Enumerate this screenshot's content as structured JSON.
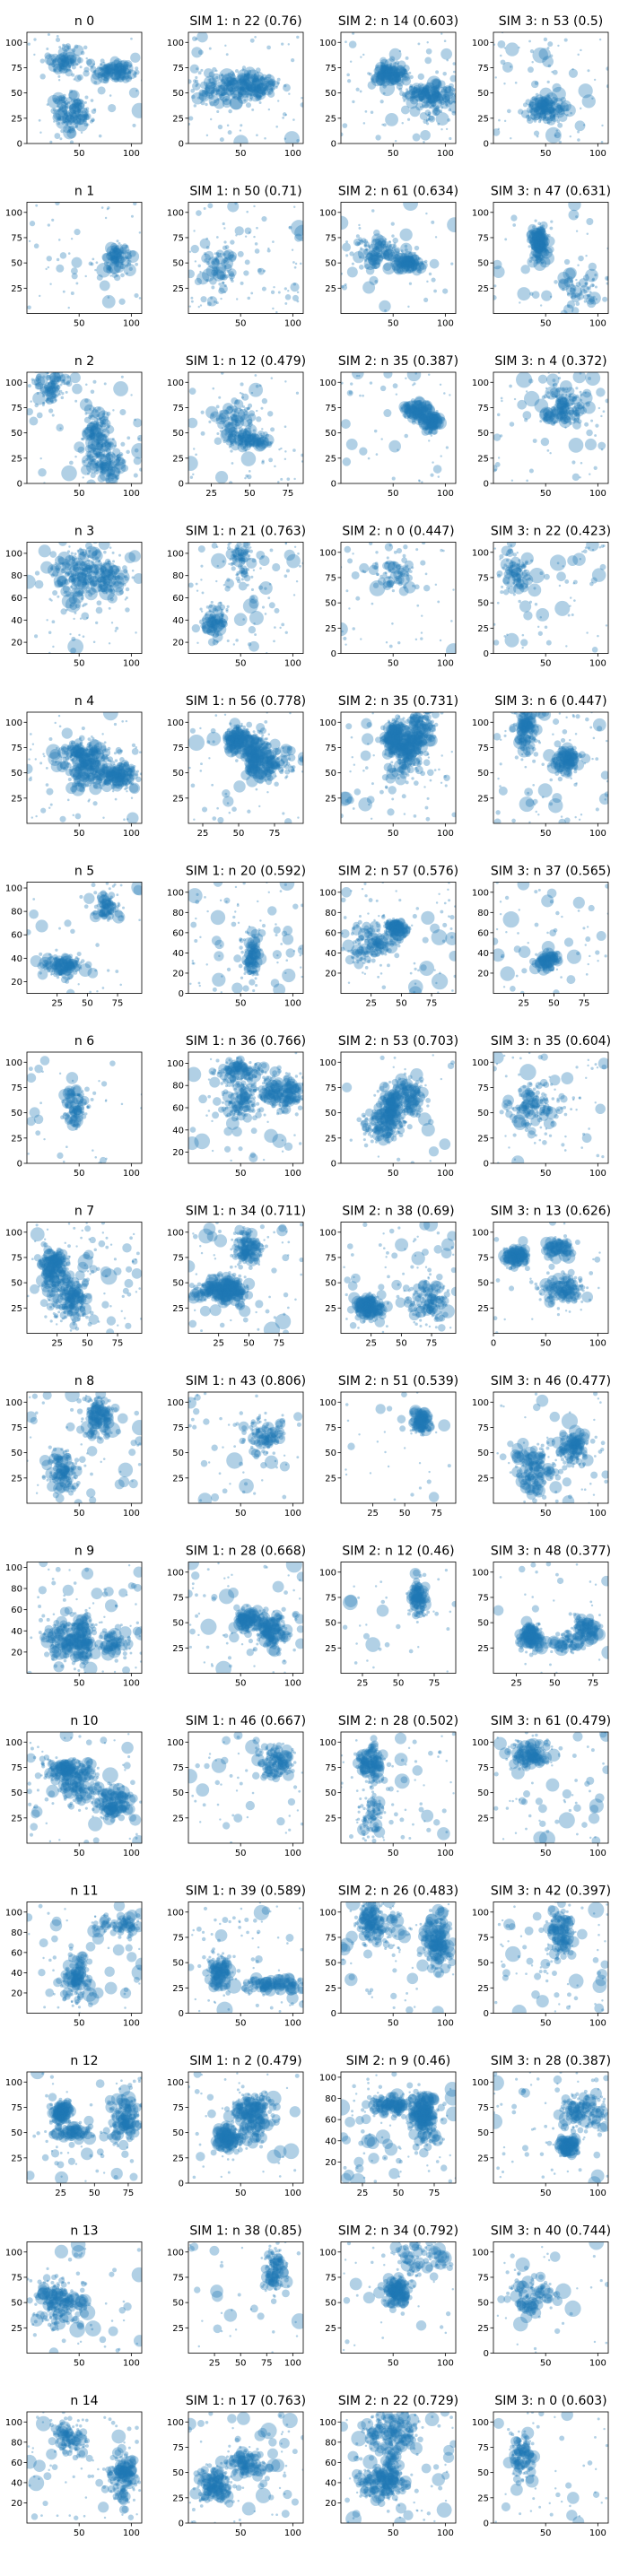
{
  "figure": {
    "colors": {
      "marker": "#1f77b4",
      "marker_alpha": 0.35,
      "axis": "#000000",
      "background": "#ffffff"
    },
    "rows": 15,
    "cols": 4
  },
  "chart_data": [
    {
      "title": "n 0",
      "type": "scatter",
      "xlim": [
        0,
        110
      ],
      "ylim": [
        0,
        110
      ],
      "xticks": [
        50,
        100
      ],
      "yticks": [
        0,
        25,
        50,
        75,
        100
      ]
    },
    {
      "title": "SIM 1: n 22 (0.76)",
      "type": "scatter",
      "xlim": [
        0,
        110
      ],
      "ylim": [
        0,
        110
      ],
      "xticks": [
        50,
        100
      ],
      "yticks": [
        0,
        25,
        50,
        75,
        100
      ]
    },
    {
      "title": "SIM 2: n 14 (0.603)",
      "type": "scatter",
      "xlim": [
        0,
        110
      ],
      "ylim": [
        0,
        110
      ],
      "xticks": [
        50,
        100
      ],
      "yticks": [
        0,
        25,
        50,
        75,
        100
      ]
    },
    {
      "title": "SIM 3: n 53 (0.5)",
      "type": "scatter",
      "xlim": [
        0,
        110
      ],
      "ylim": [
        0,
        110
      ],
      "xticks": [
        50,
        100
      ],
      "yticks": [
        0,
        25,
        50,
        75,
        100
      ]
    },
    {
      "title": "n 1",
      "type": "scatter",
      "xlim": [
        0,
        110
      ],
      "ylim": [
        0,
        110
      ],
      "xticks": [
        50,
        100
      ],
      "yticks": [
        25,
        50,
        75,
        100
      ]
    },
    {
      "title": "SIM 1: n 50 (0.71)",
      "type": "scatter",
      "xlim": [
        0,
        110
      ],
      "ylim": [
        0,
        110
      ],
      "xticks": [
        50,
        100
      ],
      "yticks": [
        25,
        50,
        75,
        100
      ]
    },
    {
      "title": "SIM 2: n 61 (0.634)",
      "type": "scatter",
      "xlim": [
        0,
        110
      ],
      "ylim": [
        0,
        110
      ],
      "xticks": [
        50,
        100
      ],
      "yticks": [
        25,
        50,
        75,
        100
      ]
    },
    {
      "title": "SIM 3: n 47 (0.631)",
      "type": "scatter",
      "xlim": [
        0,
        110
      ],
      "ylim": [
        0,
        110
      ],
      "xticks": [
        50,
        100
      ],
      "yticks": [
        25,
        50,
        75,
        100
      ]
    },
    {
      "title": "n 2",
      "type": "scatter",
      "xlim": [
        0,
        110
      ],
      "ylim": [
        0,
        110
      ],
      "xticks": [
        50,
        100
      ],
      "yticks": [
        0,
        25,
        50,
        75,
        100
      ]
    },
    {
      "title": "SIM 1: n 12 (0.479)",
      "type": "scatter",
      "xlim": [
        10,
        85
      ],
      "ylim": [
        0,
        110
      ],
      "xticks": [
        25,
        50,
        75
      ],
      "yticks": [
        0,
        25,
        50,
        75,
        100
      ]
    },
    {
      "title": "SIM 2: n 35 (0.387)",
      "type": "scatter",
      "xlim": [
        0,
        110
      ],
      "ylim": [
        0,
        110
      ],
      "xticks": [
        50,
        100
      ],
      "yticks": [
        0,
        25,
        50,
        75,
        100
      ]
    },
    {
      "title": "SIM 3: n 4 (0.372)",
      "type": "scatter",
      "xlim": [
        0,
        110
      ],
      "ylim": [
        0,
        110
      ],
      "xticks": [
        50,
        100
      ],
      "yticks": [
        0,
        25,
        50,
        75,
        100
      ]
    },
    {
      "title": "n 3",
      "type": "scatter",
      "xlim": [
        0,
        110
      ],
      "ylim": [
        10,
        110
      ],
      "xticks": [
        50,
        100
      ],
      "yticks": [
        20,
        40,
        60,
        80,
        100
      ]
    },
    {
      "title": "SIM 1: n 21 (0.763)",
      "type": "scatter",
      "xlim": [
        0,
        110
      ],
      "ylim": [
        10,
        110
      ],
      "xticks": [
        50,
        100
      ],
      "yticks": [
        20,
        40,
        60,
        80,
        100
      ]
    },
    {
      "title": "SIM 2: n 0 (0.447)",
      "type": "scatter",
      "xlim": [
        0,
        110
      ],
      "ylim": [
        0,
        110
      ],
      "xticks": [
        50,
        100
      ],
      "yticks": [
        0,
        25,
        50,
        75,
        100
      ]
    },
    {
      "title": "SIM 3: n 22 (0.423)",
      "type": "scatter",
      "xlim": [
        0,
        110
      ],
      "ylim": [
        0,
        110
      ],
      "xticks": [
        50,
        100
      ],
      "yticks": [
        0,
        25,
        50,
        75,
        100
      ]
    },
    {
      "title": "n 4",
      "type": "scatter",
      "xlim": [
        0,
        110
      ],
      "ylim": [
        0,
        110
      ],
      "xticks": [
        50,
        100
      ],
      "yticks": [
        25,
        50,
        75,
        100
      ]
    },
    {
      "title": "SIM 1: n 56 (0.778)",
      "type": "scatter",
      "xlim": [
        15,
        95
      ],
      "ylim": [
        0,
        110
      ],
      "xticks": [
        25,
        50,
        75
      ],
      "yticks": [
        25,
        50,
        75,
        100
      ]
    },
    {
      "title": "SIM 2: n 35 (0.731)",
      "type": "scatter",
      "xlim": [
        0,
        110
      ],
      "ylim": [
        0,
        110
      ],
      "xticks": [
        50,
        100
      ],
      "yticks": [
        25,
        50,
        75,
        100
      ]
    },
    {
      "title": "SIM 3: n 6 (0.447)",
      "type": "scatter",
      "xlim": [
        0,
        110
      ],
      "ylim": [
        0,
        110
      ],
      "xticks": [
        50,
        100
      ],
      "yticks": [
        25,
        50,
        75,
        100
      ]
    },
    {
      "title": "n 5",
      "type": "scatter",
      "xlim": [
        0,
        95
      ],
      "ylim": [
        10,
        105
      ],
      "xticks": [
        25,
        50,
        75
      ],
      "yticks": [
        20,
        40,
        60,
        80,
        100
      ]
    },
    {
      "title": "SIM 1: n 20 (0.592)",
      "type": "scatter",
      "xlim": [
        0,
        110
      ],
      "ylim": [
        0,
        110
      ],
      "xticks": [
        50,
        100
      ],
      "yticks": [
        0,
        20,
        40,
        60,
        80,
        100
      ]
    },
    {
      "title": "SIM 2: n 57 (0.576)",
      "type": "scatter",
      "xlim": [
        0,
        95
      ],
      "ylim": [
        0,
        110
      ],
      "xticks": [
        25,
        50,
        75
      ],
      "yticks": [
        20,
        40,
        60,
        80,
        100
      ]
    },
    {
      "title": "SIM 3: n 37 (0.565)",
      "type": "scatter",
      "xlim": [
        0,
        95
      ],
      "ylim": [
        0,
        110
      ],
      "xticks": [
        25,
        50,
        75
      ],
      "yticks": [
        20,
        40,
        60,
        80,
        100
      ]
    },
    {
      "title": "n 6",
      "type": "scatter",
      "xlim": [
        0,
        110
      ],
      "ylim": [
        0,
        110
      ],
      "xticks": [
        50,
        100
      ],
      "yticks": [
        0,
        25,
        50,
        75,
        100
      ]
    },
    {
      "title": "SIM 1: n 36 (0.766)",
      "type": "scatter",
      "xlim": [
        0,
        110
      ],
      "ylim": [
        10,
        110
      ],
      "xticks": [
        50,
        100
      ],
      "yticks": [
        20,
        40,
        60,
        80,
        100
      ]
    },
    {
      "title": "SIM 2: n 53 (0.703)",
      "type": "scatter",
      "xlim": [
        0,
        110
      ],
      "ylim": [
        0,
        110
      ],
      "xticks": [
        50,
        100
      ],
      "yticks": [
        0,
        25,
        50,
        75,
        100
      ]
    },
    {
      "title": "SIM 3: n 35 (0.604)",
      "type": "scatter",
      "xlim": [
        0,
        110
      ],
      "ylim": [
        0,
        110
      ],
      "xticks": [
        50,
        100
      ],
      "yticks": [
        0,
        25,
        50,
        75,
        100
      ]
    },
    {
      "title": "n 7",
      "type": "scatter",
      "xlim": [
        0,
        95
      ],
      "ylim": [
        0,
        110
      ],
      "xticks": [
        25,
        50,
        75
      ],
      "yticks": [
        25,
        50,
        75,
        100
      ]
    },
    {
      "title": "SIM 1: n 34 (0.711)",
      "type": "scatter",
      "xlim": [
        0,
        95
      ],
      "ylim": [
        0,
        110
      ],
      "xticks": [
        25,
        50,
        75
      ],
      "yticks": [
        25,
        50,
        75,
        100
      ]
    },
    {
      "title": "SIM 2: n 38 (0.69)",
      "type": "scatter",
      "xlim": [
        0,
        95
      ],
      "ylim": [
        0,
        110
      ],
      "xticks": [
        25,
        50,
        75
      ],
      "yticks": [
        25,
        50,
        75,
        100
      ]
    },
    {
      "title": "SIM 3: n 13 (0.626)",
      "type": "scatter",
      "xlim": [
        0,
        110
      ],
      "ylim": [
        0,
        110
      ],
      "xticks": [
        0,
        50,
        100
      ],
      "yticks": [
        25,
        50,
        75,
        100
      ]
    },
    {
      "title": "n 8",
      "type": "scatter",
      "xlim": [
        0,
        110
      ],
      "ylim": [
        0,
        110
      ],
      "xticks": [
        50,
        100
      ],
      "yticks": [
        25,
        50,
        75,
        100
      ]
    },
    {
      "title": "SIM 1: n 43 (0.806)",
      "type": "scatter",
      "xlim": [
        0,
        110
      ],
      "ylim": [
        0,
        110
      ],
      "xticks": [
        50,
        100
      ],
      "yticks": [
        25,
        50,
        75,
        100
      ]
    },
    {
      "title": "SIM 2: n 51 (0.539)",
      "type": "scatter",
      "xlim": [
        0,
        90
      ],
      "ylim": [
        0,
        110
      ],
      "xticks": [
        25,
        50,
        75
      ],
      "yticks": [
        25,
        50,
        75,
        100
      ]
    },
    {
      "title": "SIM 3: n 46 (0.477)",
      "type": "scatter",
      "xlim": [
        0,
        110
      ],
      "ylim": [
        0,
        110
      ],
      "xticks": [
        50,
        100
      ],
      "yticks": [
        25,
        50,
        75,
        100
      ]
    },
    {
      "title": "n 9",
      "type": "scatter",
      "xlim": [
        0,
        110
      ],
      "ylim": [
        0,
        105
      ],
      "xticks": [
        50,
        100
      ],
      "yticks": [
        20,
        40,
        60,
        80,
        100
      ]
    },
    {
      "title": "SIM 1: n 28 (0.668)",
      "type": "scatter",
      "xlim": [
        0,
        110
      ],
      "ylim": [
        0,
        110
      ],
      "xticks": [
        50,
        100
      ],
      "yticks": [
        25,
        50,
        75,
        100
      ]
    },
    {
      "title": "SIM 2: n 12 (0.46)",
      "type": "scatter",
      "xlim": [
        10,
        90
      ],
      "ylim": [
        0,
        110
      ],
      "xticks": [
        25,
        50,
        75
      ],
      "yticks": [
        25,
        50,
        75,
        100
      ]
    },
    {
      "title": "SIM 3: n 48 (0.377)",
      "type": "scatter",
      "xlim": [
        10,
        85
      ],
      "ylim": [
        0,
        110
      ],
      "xticks": [
        25,
        50,
        75
      ],
      "yticks": [
        25,
        50,
        75,
        100
      ]
    },
    {
      "title": "n 10",
      "type": "scatter",
      "xlim": [
        0,
        110
      ],
      "ylim": [
        0,
        110
      ],
      "xticks": [
        50,
        100
      ],
      "yticks": [
        25,
        50,
        75,
        100
      ]
    },
    {
      "title": "SIM 1: n 46 (0.667)",
      "type": "scatter",
      "xlim": [
        0,
        110
      ],
      "ylim": [
        0,
        110
      ],
      "xticks": [
        50,
        100
      ],
      "yticks": [
        25,
        50,
        75,
        100
      ]
    },
    {
      "title": "SIM 2: n 28 (0.502)",
      "type": "scatter",
      "xlim": [
        0,
        110
      ],
      "ylim": [
        0,
        110
      ],
      "xticks": [
        50,
        100
      ],
      "yticks": [
        25,
        50,
        75,
        100
      ]
    },
    {
      "title": "SIM 3: n 61 (0.479)",
      "type": "scatter",
      "xlim": [
        0,
        110
      ],
      "ylim": [
        0,
        110
      ],
      "xticks": [
        50,
        100
      ],
      "yticks": [
        25,
        50,
        75,
        100
      ]
    },
    {
      "title": "n 11",
      "type": "scatter",
      "xlim": [
        0,
        110
      ],
      "ylim": [
        0,
        110
      ],
      "xticks": [
        50,
        100
      ],
      "yticks": [
        20,
        40,
        60,
        80,
        100
      ]
    },
    {
      "title": "SIM 1: n 39 (0.589)",
      "type": "scatter",
      "xlim": [
        0,
        110
      ],
      "ylim": [
        0,
        110
      ],
      "xticks": [
        50,
        100
      ],
      "yticks": [
        0,
        25,
        50,
        75,
        100
      ]
    },
    {
      "title": "SIM 2: n 26 (0.483)",
      "type": "scatter",
      "xlim": [
        0,
        110
      ],
      "ylim": [
        0,
        110
      ],
      "xticks": [
        50,
        100
      ],
      "yticks": [
        0,
        25,
        50,
        75,
        100
      ]
    },
    {
      "title": "SIM 3: n 42 (0.397)",
      "type": "scatter",
      "xlim": [
        0,
        110
      ],
      "ylim": [
        0,
        110
      ],
      "xticks": [
        50,
        100
      ],
      "yticks": [
        0,
        25,
        50,
        75,
        100
      ]
    },
    {
      "title": "n 12",
      "type": "scatter",
      "xlim": [
        0,
        85
      ],
      "ylim": [
        0,
        110
      ],
      "xticks": [
        25,
        50,
        75
      ],
      "yticks": [
        25,
        50,
        75,
        100
      ]
    },
    {
      "title": "SIM 1: n 2 (0.479)",
      "type": "scatter",
      "xlim": [
        0,
        110
      ],
      "ylim": [
        0,
        110
      ],
      "xticks": [
        50,
        100
      ],
      "yticks": [
        0,
        25,
        50,
        75,
        100
      ]
    },
    {
      "title": "SIM 2: n 9 (0.46)",
      "type": "scatter",
      "xlim": [
        10,
        90
      ],
      "ylim": [
        0,
        105
      ],
      "xticks": [
        25,
        50,
        75
      ],
      "yticks": [
        20,
        40,
        60,
        80,
        100
      ]
    },
    {
      "title": "SIM 3: n 28 (0.387)",
      "type": "scatter",
      "xlim": [
        0,
        110
      ],
      "ylim": [
        0,
        110
      ],
      "xticks": [
        50,
        100
      ],
      "yticks": [
        25,
        50,
        75,
        100
      ]
    },
    {
      "title": "n 13",
      "type": "scatter",
      "xlim": [
        0,
        110
      ],
      "ylim": [
        0,
        110
      ],
      "xticks": [
        50,
        100
      ],
      "yticks": [
        25,
        50,
        75,
        100
      ]
    },
    {
      "title": "SIM 1: n 38 (0.85)",
      "type": "scatter",
      "xlim": [
        0,
        110
      ],
      "ylim": [
        0,
        110
      ],
      "xticks": [
        25,
        50,
        75,
        100
      ],
      "yticks": [
        25,
        50,
        75,
        100
      ]
    },
    {
      "title": "SIM 2: n 34 (0.792)",
      "type": "scatter",
      "xlim": [
        0,
        110
      ],
      "ylim": [
        0,
        110
      ],
      "xticks": [
        50,
        100
      ],
      "yticks": [
        25,
        50,
        75,
        100
      ]
    },
    {
      "title": "SIM 3: n 40 (0.744)",
      "type": "scatter",
      "xlim": [
        0,
        110
      ],
      "ylim": [
        0,
        110
      ],
      "xticks": [
        50,
        100
      ],
      "yticks": [
        0,
        25,
        50,
        75,
        100
      ]
    },
    {
      "title": "n 14",
      "type": "scatter",
      "xlim": [
        0,
        110
      ],
      "ylim": [
        0,
        110
      ],
      "xticks": [
        50,
        100
      ],
      "yticks": [
        20,
        40,
        60,
        80,
        100
      ]
    },
    {
      "title": "SIM 1: n 17 (0.763)",
      "type": "scatter",
      "xlim": [
        0,
        110
      ],
      "ylim": [
        0,
        110
      ],
      "xticks": [
        50,
        100
      ],
      "yticks": [
        0,
        25,
        50,
        75,
        100
      ]
    },
    {
      "title": "SIM 2: n 22 (0.729)",
      "type": "scatter",
      "xlim": [
        0,
        110
      ],
      "ylim": [
        0,
        110
      ],
      "xticks": [
        50,
        100
      ],
      "yticks": [
        20,
        40,
        60,
        80,
        100
      ]
    },
    {
      "title": "SIM 3: n 0 (0.603)",
      "type": "scatter",
      "xlim": [
        0,
        110
      ],
      "ylim": [
        0,
        110
      ],
      "xticks": [
        50,
        100
      ],
      "yticks": [
        0,
        25,
        50,
        75,
        100
      ]
    }
  ]
}
